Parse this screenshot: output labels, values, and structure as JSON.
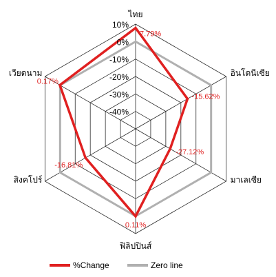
{
  "chart_data": {
    "type": "radar",
    "categories": [
      "ไทย",
      "อินโดนีเซีย",
      "มาเลเซีย",
      "ฟิลิปปินส์",
      "สิงคโปร์",
      "เวียดนาม"
    ],
    "rlim": [
      -50,
      10
    ],
    "ticks": [
      10,
      0,
      -10,
      -20,
      -30,
      -40
    ],
    "tick_labels": [
      "10%",
      "0%",
      "-10%",
      "-20%",
      "-30%",
      "-40%"
    ],
    "grid": true,
    "legend_position": "bottom",
    "series": [
      {
        "name": "%Change",
        "values": [
          7.79,
          -15.62,
          -27.12,
          0.11,
          -16.81,
          0.17
        ],
        "labels": [
          "7.79%",
          "-15.62%",
          "-27.12%",
          "0.11%",
          "-16.81%",
          "0.17%"
        ],
        "color": "#e02020"
      },
      {
        "name": "Zero line",
        "values": [
          0,
          0,
          0,
          0,
          0,
          0
        ],
        "color": "#b0b0b0"
      }
    ]
  }
}
